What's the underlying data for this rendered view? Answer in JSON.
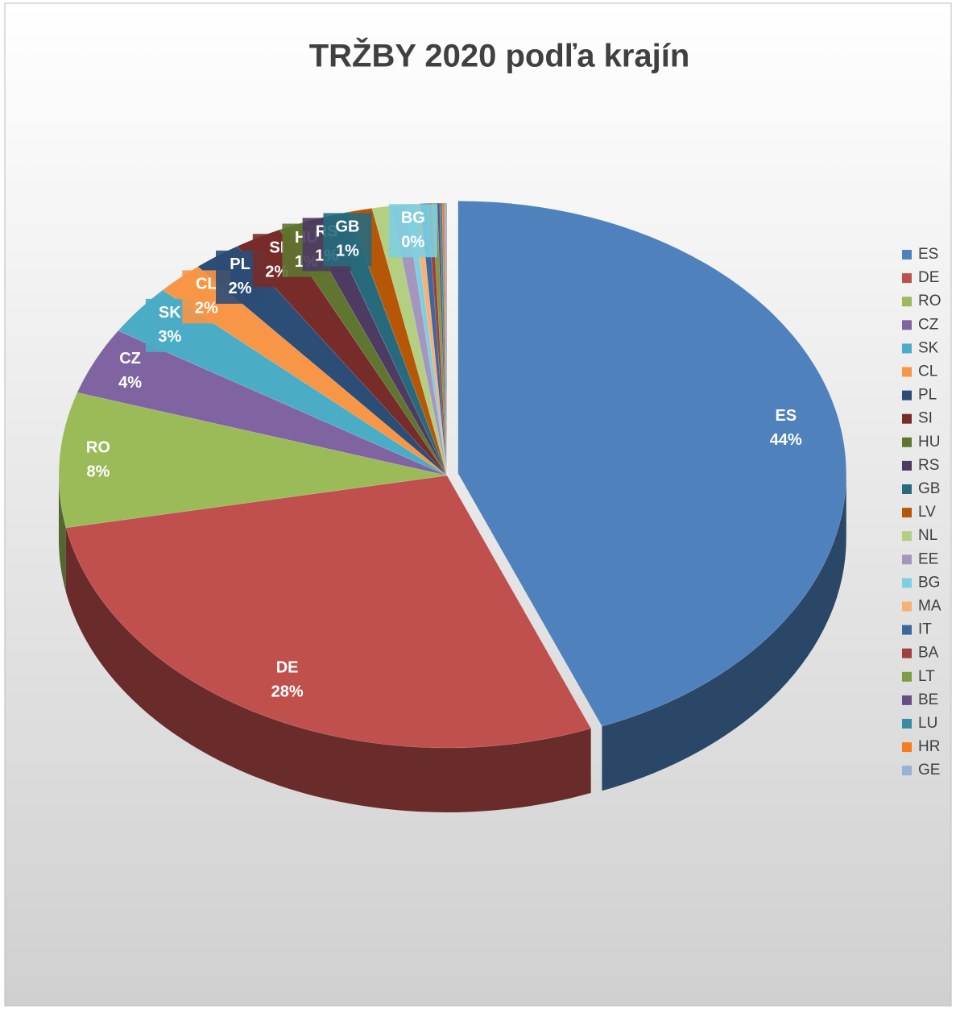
{
  "chart_data": {
    "type": "pie",
    "title": "TRŽBY 2020 podľa krajín",
    "categories": [
      "ES",
      "DE",
      "RO",
      "CZ",
      "SK",
      "CL",
      "PL",
      "SI",
      "HU",
      "RS",
      "GB",
      "LV",
      "NL",
      "EE",
      "BG",
      "MA",
      "IT",
      "BA",
      "LT",
      "BE",
      "LU",
      "HR",
      "GE"
    ],
    "values": [
      44,
      28,
      8,
      4,
      3,
      2,
      2,
      2,
      1,
      1,
      1,
      1,
      0.8,
      0.6,
      0.3,
      0.3,
      0.3,
      0.2,
      0.2,
      0.1,
      0.1,
      0.1,
      0.1
    ],
    "value_labels": [
      "44%",
      "28%",
      "8%",
      "4%",
      "3%",
      "2%",
      "2%",
      "2%",
      "1%",
      "1%",
      "1%",
      null,
      null,
      null,
      "0%",
      null,
      null,
      null,
      null,
      null,
      null,
      null,
      null
    ],
    "colors": [
      "#4f81bd",
      "#c0504d",
      "#9bbb59",
      "#8064a2",
      "#4bacc6",
      "#f79646",
      "#2c4d75",
      "#772c2a",
      "#5f7530",
      "#4d3b62",
      "#276a7c",
      "#b65708",
      "#b3cf82",
      "#a596c0",
      "#7fcfe0",
      "#f9b074",
      "#3a68a0",
      "#a03f3c",
      "#7e9c40",
      "#664e86",
      "#3a8ca3",
      "#f57c1f",
      "#95b3d7"
    ],
    "legend": "right"
  }
}
